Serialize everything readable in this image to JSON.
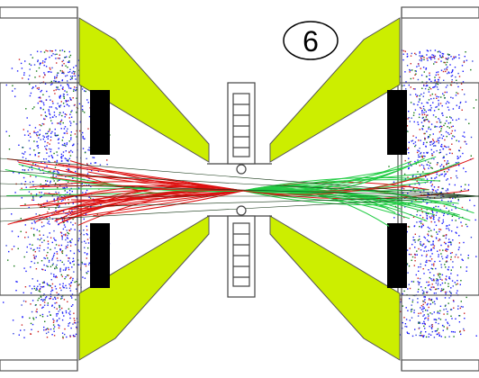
{
  "label": "6"
}
